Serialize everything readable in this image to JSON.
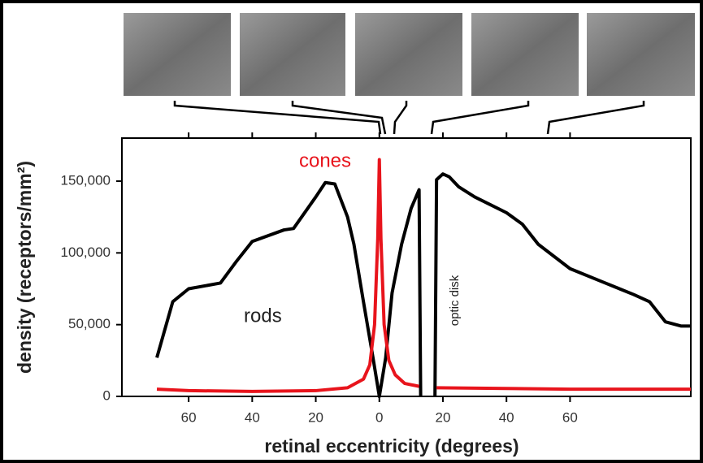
{
  "chart_data": {
    "type": "line",
    "x_label": "retinal eccentricity (degrees)",
    "y_label": "density (receptors/mm²)",
    "annotations": {
      "rods": "rods",
      "cones": "cones",
      "optic_disk": "optic disk"
    },
    "xlim": [
      -81,
      98
    ],
    "ylim": [
      0,
      180000
    ],
    "xticks": [
      {
        "value": -60,
        "label": "60"
      },
      {
        "value": -40,
        "label": "40"
      },
      {
        "value": -20,
        "label": "20"
      },
      0,
      20,
      40,
      60
    ],
    "yticks": [
      0,
      {
        "value": 50000,
        "label": "50,000"
      },
      {
        "value": 100000,
        "label": "100,000"
      },
      {
        "value": 150000,
        "label": "150,000"
      }
    ],
    "series": [
      {
        "name": "rods",
        "color": "#000000",
        "x": [
          -70,
          -65,
          -60,
          -50,
          -45,
          -40,
          -30,
          -27,
          -20,
          -17,
          -14,
          -10,
          -8,
          -5,
          -2,
          0,
          2,
          4,
          7,
          10,
          12.5,
          13,
          15,
          17.5,
          18,
          20,
          22,
          25,
          30,
          40,
          45,
          50,
          60,
          70,
          80,
          85,
          90,
          95,
          98
        ],
        "values": [
          27000,
          66000,
          75000,
          79000,
          94000,
          108000,
          116000,
          117000,
          139000,
          149000,
          148000,
          125000,
          106000,
          66000,
          27000,
          0,
          27000,
          72000,
          106000,
          131000,
          144000,
          0,
          null,
          0,
          151000,
          155000,
          153000,
          146000,
          139000,
          128000,
          120000,
          106000,
          89000,
          80000,
          71000,
          66000,
          52000,
          49000,
          49000
        ]
      },
      {
        "name": "cones",
        "color": "#e8141c",
        "x": [
          -70,
          -60,
          -40,
          -20,
          -10,
          -5,
          -3,
          -1.5,
          -0.5,
          0,
          0.5,
          1.5,
          3,
          5,
          8,
          12.5,
          15,
          18,
          40,
          60,
          98
        ],
        "values": [
          5000,
          4000,
          3500,
          4000,
          6000,
          12000,
          22000,
          50000,
          110000,
          165000,
          110000,
          50000,
          25000,
          15000,
          9000,
          7000,
          null,
          6000,
          5500,
          5000,
          5000
        ]
      }
    ]
  }
}
